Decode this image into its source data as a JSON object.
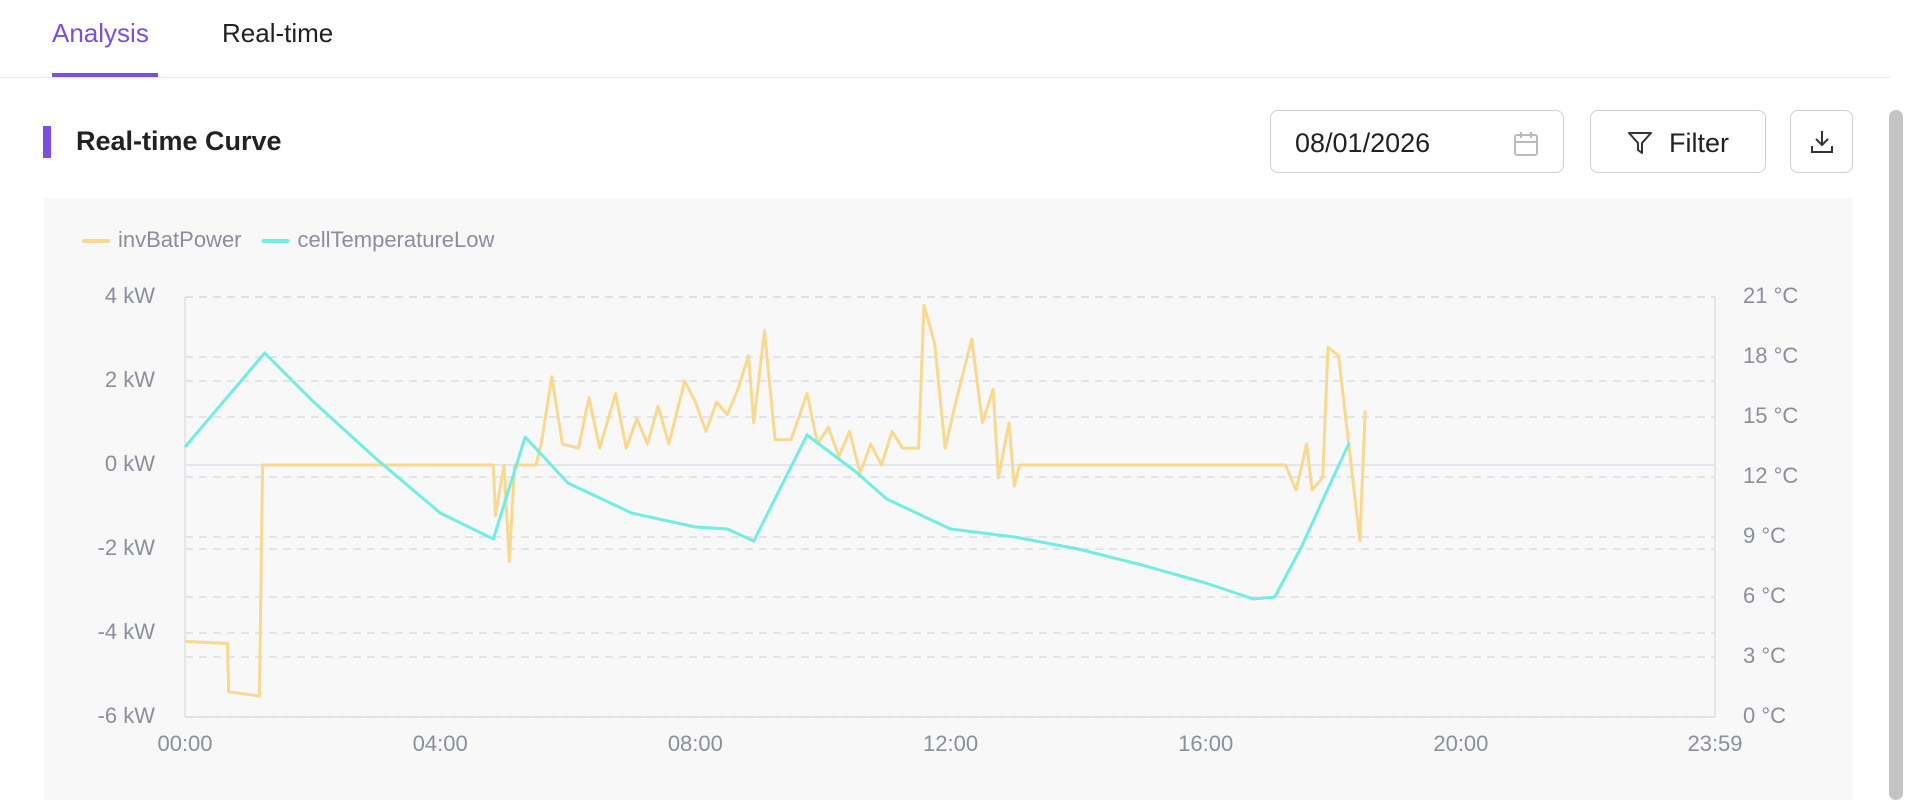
{
  "tabs": [
    "Analysis",
    "Real-time"
  ],
  "section_title": "Real-time Curve",
  "date": "08/01/2026",
  "filter_label": "Filter",
  "chart_data": {
    "type": "line",
    "xlim": [
      "00:00",
      "23:59"
    ],
    "xticks": [
      "00:00",
      "04:00",
      "08:00",
      "12:00",
      "16:00",
      "20:00",
      "23:59"
    ],
    "ylim": [
      -6,
      4
    ],
    "yticks": [
      {
        "value": -6,
        "label": "-6 kW"
      },
      {
        "value": -4,
        "label": "-4 kW"
      },
      {
        "value": -2,
        "label": "-2 kW"
      },
      {
        "value": 0,
        "label": "0 kW"
      },
      {
        "value": 2,
        "label": "2 kW"
      },
      {
        "value": 4,
        "label": "4 kW"
      }
    ],
    "y2lim": [
      0,
      21
    ],
    "y2ticks": [
      {
        "value": 0,
        "label": "0 °C"
      },
      {
        "value": 3,
        "label": "3 °C"
      },
      {
        "value": 6,
        "label": "6 °C"
      },
      {
        "value": 9,
        "label": "9 °C"
      },
      {
        "value": 12,
        "label": "12 °C"
      },
      {
        "value": 15,
        "label": "15 °C"
      },
      {
        "value": 18,
        "label": "18 °C"
      },
      {
        "value": 21,
        "label": "21 °C"
      }
    ],
    "grid": true,
    "legend": "top-left",
    "series": [
      {
        "name": "invBatPower",
        "color": "#f8d98f",
        "x": [
          "00:00",
          "00:40",
          "00:41",
          "01:10",
          "01:13",
          "04:50",
          "04:52",
          "05:00",
          "05:05",
          "05:10",
          "05:30",
          "05:35",
          "05:45",
          "05:55",
          "06:10",
          "06:20",
          "06:30",
          "06:45",
          "06:55",
          "07:05",
          "07:15",
          "07:25",
          "07:35",
          "07:50",
          "08:00",
          "08:10",
          "08:20",
          "08:30",
          "08:40",
          "08:50",
          "08:55",
          "09:05",
          "09:15",
          "09:30",
          "09:45",
          "09:55",
          "10:05",
          "10:15",
          "10:25",
          "10:35",
          "10:45",
          "10:55",
          "11:05",
          "11:15",
          "11:30",
          "11:35",
          "11:45",
          "11:55",
          "12:05",
          "12:20",
          "12:30",
          "12:40",
          "12:45",
          "12:55",
          "13:00",
          "13:05",
          "17:15",
          "17:25",
          "17:35",
          "17:40",
          "17:50",
          "17:55",
          "18:05",
          "18:15",
          "18:25",
          "18:30"
        ],
        "values": [
          -4.2,
          -4.25,
          -5.4,
          -5.5,
          0,
          0,
          -1.2,
          0,
          -2.3,
          0,
          0,
          0.5,
          2.1,
          0.5,
          0.4,
          1.6,
          0.4,
          1.7,
          0.4,
          1.1,
          0.5,
          1.4,
          0.5,
          2.0,
          1.5,
          0.8,
          1.5,
          1.2,
          1.8,
          2.6,
          1.0,
          3.2,
          0.6,
          0.6,
          1.7,
          0.5,
          0.9,
          0.2,
          0.8,
          -0.2,
          0.5,
          0,
          0.8,
          0.4,
          0.4,
          3.8,
          2.9,
          0.4,
          1.5,
          3.0,
          1.0,
          1.8,
          -0.3,
          1.0,
          -0.5,
          0,
          0,
          -0.6,
          0.5,
          -0.6,
          -0.3,
          2.8,
          2.6,
          0.4,
          -1.8,
          1.3
        ]
      },
      {
        "name": "cellTemperatureLow",
        "color": "#72ede3",
        "axis": "y2",
        "x": [
          "00:00",
          "01:15",
          "02:00",
          "03:00",
          "04:00",
          "04:50",
          "05:20",
          "06:00",
          "07:00",
          "08:00",
          "08:30",
          "08:55",
          "09:45",
          "10:30",
          "11:00",
          "12:00",
          "13:00",
          "14:00",
          "15:00",
          "16:00",
          "16:45",
          "17:05",
          "17:30",
          "18:00",
          "18:15"
        ],
        "values": [
          13.5,
          18.2,
          15.8,
          12.9,
          10.2,
          8.9,
          14.0,
          11.7,
          10.2,
          9.5,
          9.4,
          8.8,
          14.1,
          12.3,
          10.9,
          9.4,
          9.0,
          8.4,
          7.6,
          6.7,
          5.9,
          6.0,
          8.5,
          12.0,
          13.7
        ]
      }
    ]
  }
}
